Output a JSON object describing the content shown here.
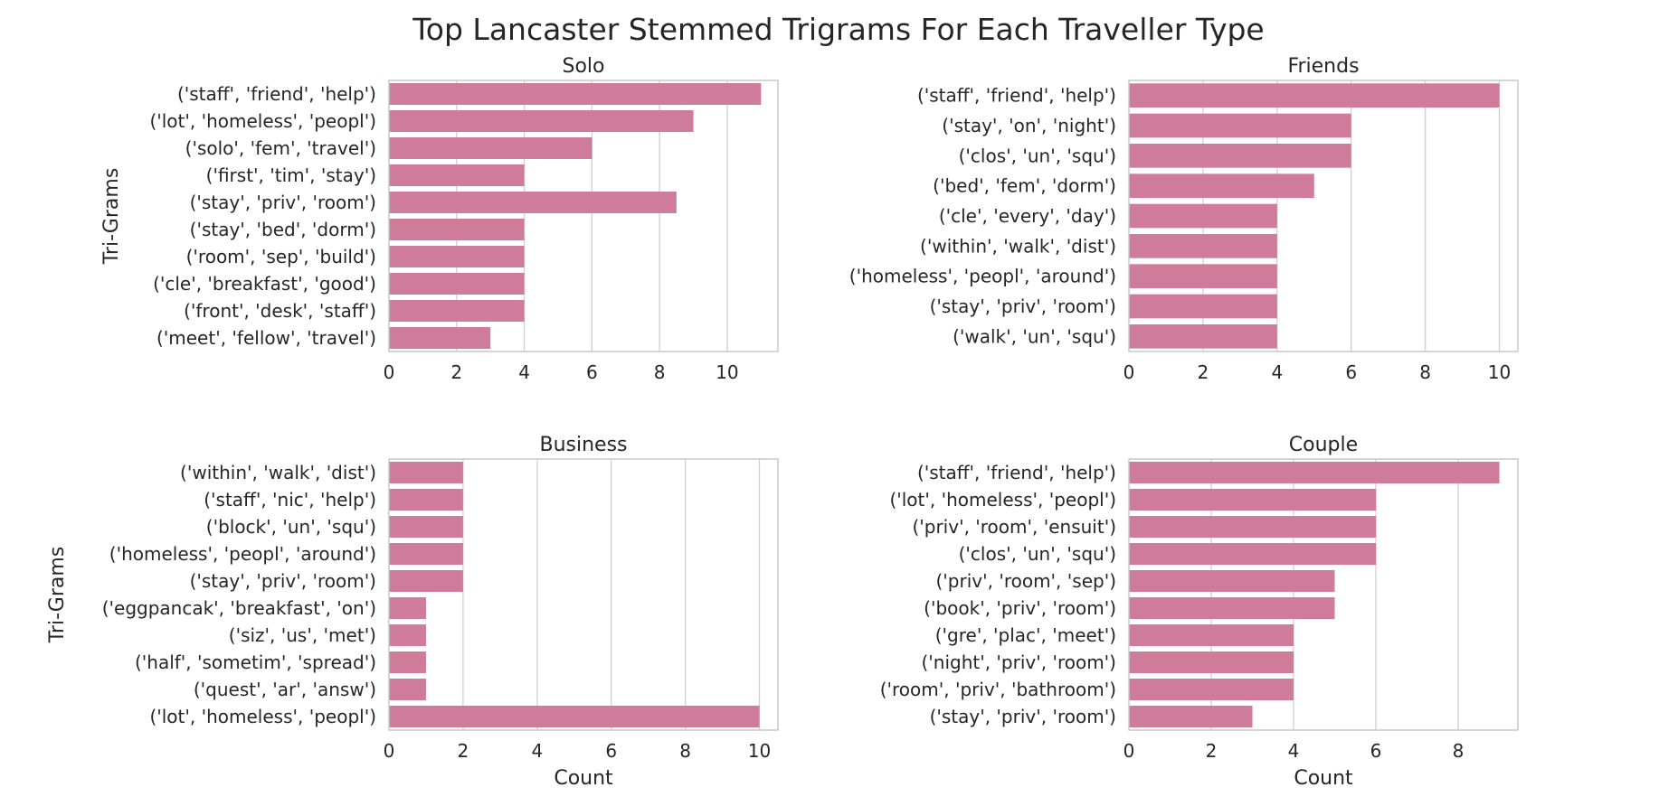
{
  "figure": {
    "title": "Top Lancaster Stemmed Trigrams For Each Traveller Type",
    "bar_color": "#cf7c9a",
    "grid_color": "#d0d0d0",
    "spine_color": "#c8c8c8",
    "text_color": "#262626"
  },
  "chart_data": [
    {
      "type": "bar",
      "orientation": "horizontal",
      "title": "Solo",
      "ylabel": "Tri-Grams",
      "xlabel": "",
      "xlim": [
        0,
        11.5
      ],
      "xticks": [
        0,
        2,
        4,
        6,
        8,
        10
      ],
      "grid": "x",
      "categories": [
        "('staff', 'friend', 'help')",
        "('lot', 'homeless', 'peopl')",
        "('solo', 'fem', 'travel')",
        "('first', 'tim', 'stay')",
        "('stay', 'priv', 'room')",
        "('stay', 'bed', 'dorm')",
        "('room', 'sep', 'build')",
        "('cle', 'breakfast', 'good')",
        "('front', 'desk', 'staff')",
        "('meet', 'fellow', 'travel')"
      ],
      "values": [
        11,
        9,
        6,
        4,
        8.5,
        4,
        4,
        4,
        4,
        3
      ]
    },
    {
      "type": "bar",
      "orientation": "horizontal",
      "title": "Friends",
      "ylabel": "",
      "xlabel": "",
      "xlim": [
        0,
        10.5
      ],
      "xticks": [
        0,
        2,
        4,
        6,
        8,
        10
      ],
      "grid": "x",
      "categories": [
        "('staff', 'friend', 'help')",
        "('stay', 'on', 'night')",
        "('clos', 'un', 'squ')",
        "('bed', 'fem', 'dorm')",
        "('cle', 'every', 'day')",
        "('within', 'walk', 'dist')",
        "('homeless', 'peopl', 'around')",
        "('stay', 'priv', 'room')",
        "('walk', 'un', 'squ')"
      ],
      "values": [
        10,
        6,
        6,
        5,
        4,
        4,
        4,
        4,
        4
      ]
    },
    {
      "type": "bar",
      "orientation": "horizontal",
      "title": "Business",
      "ylabel": "Tri-Grams",
      "xlabel": "Count",
      "xlim": [
        0,
        10.5
      ],
      "xticks": [
        0,
        2,
        4,
        6,
        8,
        10
      ],
      "grid": "x",
      "categories": [
        "('within', 'walk', 'dist')",
        "('staff', 'nic', 'help')",
        "('block', 'un', 'squ')",
        "('homeless', 'peopl', 'around')",
        "('stay', 'priv', 'room')",
        "('eggpancak', 'breakfast', 'on')",
        "('siz', 'us', 'met')",
        "('half', 'sometim', 'spread')",
        "('quest', 'ar', 'answ')",
        "('lot', 'homeless', 'peopl')"
      ],
      "values": [
        2,
        2,
        2,
        2,
        2,
        1,
        1,
        1,
        1,
        10
      ]
    },
    {
      "type": "bar",
      "orientation": "horizontal",
      "title": "Couple",
      "ylabel": "",
      "xlabel": "Count",
      "xlim": [
        0,
        9.45
      ],
      "xticks": [
        0,
        2,
        4,
        6,
        8
      ],
      "grid": "x",
      "categories": [
        "('staff', 'friend', 'help')",
        "('lot', 'homeless', 'peopl')",
        "('priv', 'room', 'ensuit')",
        "('clos', 'un', 'squ')",
        "('priv', 'room', 'sep')",
        "('book', 'priv', 'room')",
        "('gre', 'plac', 'meet')",
        "('night', 'priv', 'room')",
        "('room', 'priv', 'bathroom')",
        "('stay', 'priv', 'room')"
      ],
      "values": [
        9,
        6,
        6,
        6,
        5,
        5,
        4,
        4,
        4,
        3
      ]
    }
  ]
}
